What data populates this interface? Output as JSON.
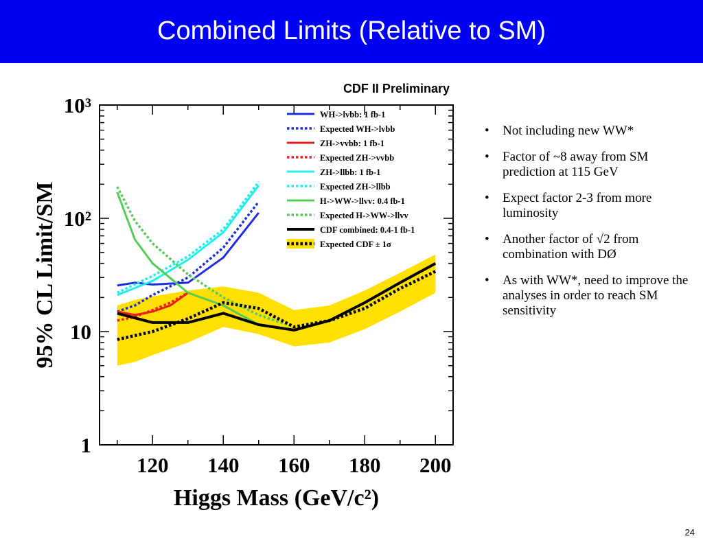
{
  "slide": {
    "title": "Combined Limits (Relative to SM)",
    "page_number": "24",
    "bullets": [
      "Not including new WW*",
      "Factor of ~8 away from SM prediction at 115 GeV",
      "Expect factor 2-3 from more luminosity",
      "Another factor of √2 from combination with DØ",
      "As with WW*, need to improve the analyses in order to reach SM sensitivity"
    ]
  },
  "chart_data": {
    "type": "line",
    "title": "CDF II Preliminary",
    "xlabel": "Higgs Mass (GeV/c²)",
    "ylabel": "95% CL Limit/SM",
    "xlim": [
      105,
      205
    ],
    "ylim": [
      1,
      1000
    ],
    "yscale": "log",
    "xticks": [
      120,
      140,
      160,
      180,
      200
    ],
    "xtick_labels": [
      "120",
      "140",
      "160",
      "180",
      "200"
    ],
    "yticks": [
      1,
      10,
      100,
      1000
    ],
    "ytick_labels": [
      "1",
      "10",
      "10²",
      "10³"
    ],
    "legend_position": "top-right",
    "band": {
      "name": "Expected CDF ± 1σ",
      "color": "#ffe000",
      "x": [
        110,
        115,
        120,
        130,
        140,
        150,
        160,
        170,
        180,
        190,
        200
      ],
      "upper": [
        17,
        19,
        20.5,
        23,
        25,
        22,
        15.5,
        17,
        23,
        33,
        48
      ],
      "lower": [
        5,
        5.4,
        6.2,
        8,
        11,
        9.5,
        7.4,
        8,
        10.5,
        15,
        22
      ]
    },
    "series": [
      {
        "name": "WH->lvbb: 1 fb-1",
        "color": "#1c2ee0",
        "dash": "solid",
        "width": 3,
        "x": [
          110,
          115,
          120,
          130,
          140,
          150
        ],
        "values": [
          25.5,
          27,
          26,
          27,
          45,
          112
        ]
      },
      {
        "name": "Expected WH->lvbb",
        "color": "#1c2ee0",
        "dash": "dotted",
        "width": 3.5,
        "x": [
          110,
          115,
          120,
          130,
          140,
          150
        ],
        "values": [
          15,
          17,
          21,
          30,
          55,
          140
        ]
      },
      {
        "name": "ZH->vvbb: 1 fb-1",
        "color": "#ee1c1c",
        "dash": "solid",
        "width": 3,
        "x": [
          110,
          115,
          120,
          125,
          130
        ],
        "values": [
          15,
          14,
          15,
          17,
          22
        ]
      },
      {
        "name": "Expected ZH->vvbb",
        "color": "#ee1c1c",
        "dash": "dotted",
        "width": 3.5,
        "x": [
          110,
          115,
          120,
          125,
          130
        ],
        "values": [
          12.5,
          13.5,
          15.5,
          18,
          22
        ]
      },
      {
        "name": "ZH->llbb: 1 fb-1",
        "color": "#22eef0",
        "dash": "solid",
        "width": 3,
        "x": [
          110,
          120,
          130,
          140,
          150
        ],
        "values": [
          21,
          28,
          43,
          75,
          195
        ]
      },
      {
        "name": "Expected ZH->llbb",
        "color": "#22eef0",
        "dash": "dotted",
        "width": 3.5,
        "x": [
          110,
          120,
          130,
          140,
          150
        ],
        "values": [
          22,
          31,
          46,
          80,
          210
        ]
      },
      {
        "name": "H->WW->llvv: 0.4 fb-1",
        "color": "#55cc55",
        "dash": "solid",
        "width": 3,
        "x": [
          110,
          115,
          120,
          130,
          140,
          150
        ],
        "values": [
          170,
          65,
          40,
          22,
          17,
          11.5
        ]
      },
      {
        "name": "Expected H->WW->llvv",
        "color": "#55cc55",
        "dash": "dotted",
        "width": 3.5,
        "x": [
          110,
          115,
          120,
          130,
          140,
          150,
          160
        ],
        "values": [
          190,
          95,
          60,
          32,
          20,
          14,
          11
        ]
      },
      {
        "name": "CDF combined: 0.4-1 fb-1",
        "color": "#000000",
        "dash": "solid",
        "width": 4,
        "x": [
          110,
          120,
          130,
          140,
          150,
          160,
          170,
          180,
          190,
          200
        ],
        "values": [
          14.5,
          12,
          12,
          14.5,
          11.5,
          10.3,
          12.5,
          18,
          27,
          40
        ]
      },
      {
        "name": "Expected CDF ± 1σ",
        "color": "#000000",
        "dash": "dotted",
        "width": 4.5,
        "x": [
          110,
          120,
          130,
          140,
          150,
          160,
          170,
          180,
          190,
          200
        ],
        "values": [
          8.5,
          10,
          13,
          18,
          16,
          11,
          12.5,
          16,
          24,
          34
        ]
      }
    ]
  }
}
